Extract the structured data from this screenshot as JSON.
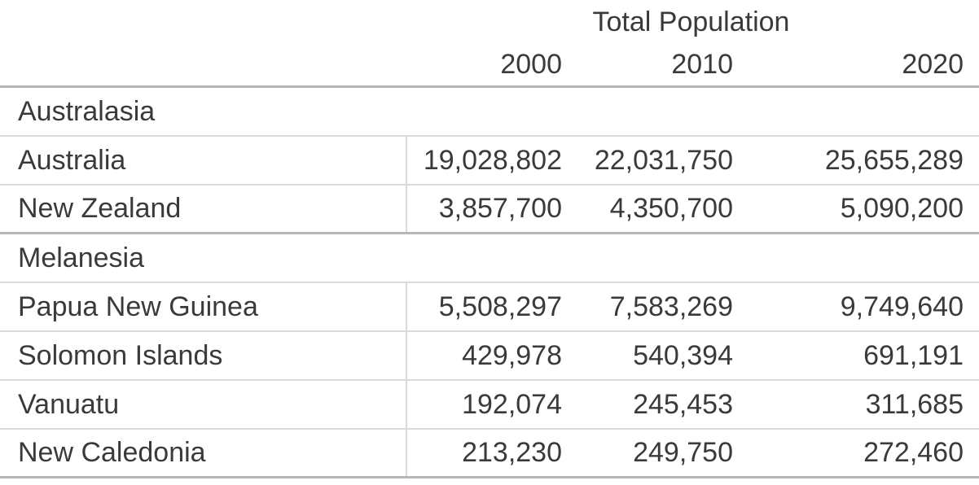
{
  "chart_data": {
    "type": "table",
    "title": "Total Population",
    "columns": [
      "2000",
      "2010",
      "2020"
    ],
    "sections": [
      {
        "label": "Australasia",
        "rows": [
          {
            "name": "Australia",
            "values": [
              "19,028,802",
              "22,031,750",
              "25,655,289"
            ],
            "values_numeric": [
              19028802,
              22031750,
              25655289
            ]
          },
          {
            "name": "New Zealand",
            "values": [
              "3,857,700",
              "4,350,700",
              "5,090,200"
            ],
            "values_numeric": [
              3857700,
              4350700,
              5090200
            ]
          }
        ]
      },
      {
        "label": "Melanesia",
        "rows": [
          {
            "name": "Papua New Guinea",
            "values": [
              "5,508,297",
              "7,583,269",
              "9,749,640"
            ],
            "values_numeric": [
              5508297,
              7583269,
              9749640
            ]
          },
          {
            "name": "Solomon Islands",
            "values": [
              "429,978",
              "540,394",
              "691,191"
            ],
            "values_numeric": [
              429978,
              540394,
              691191
            ]
          },
          {
            "name": "Vanuatu",
            "values": [
              "192,074",
              "245,453",
              "311,685"
            ],
            "values_numeric": [
              192074,
              245453,
              311685
            ]
          },
          {
            "name": "New Caledonia",
            "values": [
              "213,230",
              "249,750",
              "272,460"
            ],
            "values_numeric": [
              213230,
              249750,
              272460
            ]
          }
        ]
      }
    ],
    "layout": {
      "value_alignment": "right",
      "grid": "horizontal rules; vertical divider between name column and value columns on country rows only"
    }
  },
  "colors": {
    "text": "#3a3a3a",
    "section_border": "#b5b8b7",
    "row_border": "#d9dbda",
    "background": "#ffffff"
  }
}
